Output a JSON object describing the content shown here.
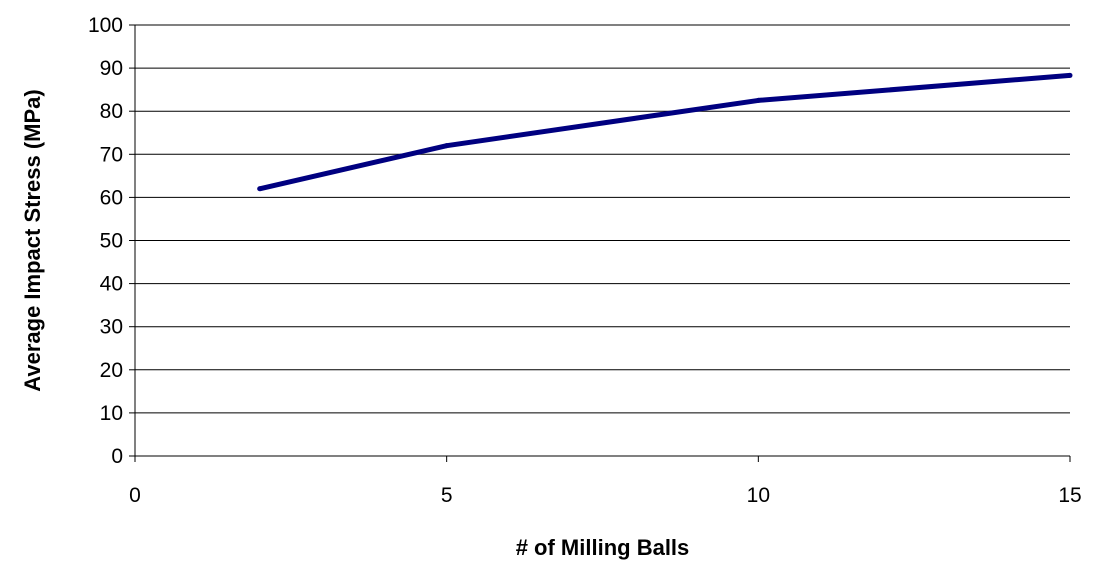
{
  "chart_data": {
    "type": "line",
    "title": "",
    "xlabel": "# of Milling Balls",
    "ylabel": "Average Impact Stress (MPa)",
    "xlim": [
      0,
      15
    ],
    "ylim": [
      0,
      100
    ],
    "x_ticks": [
      0,
      5,
      10,
      15
    ],
    "y_ticks": [
      0,
      10,
      20,
      30,
      40,
      50,
      60,
      70,
      80,
      90,
      100
    ],
    "grid": "horizontal",
    "legend": "none",
    "series": [
      {
        "color": "#000080",
        "points": [
          {
            "x": 2,
            "y": 62
          },
          {
            "x": 5,
            "y": 72
          },
          {
            "x": 10,
            "y": 82.5
          },
          {
            "x": 15,
            "y": 88.3
          }
        ]
      }
    ]
  }
}
